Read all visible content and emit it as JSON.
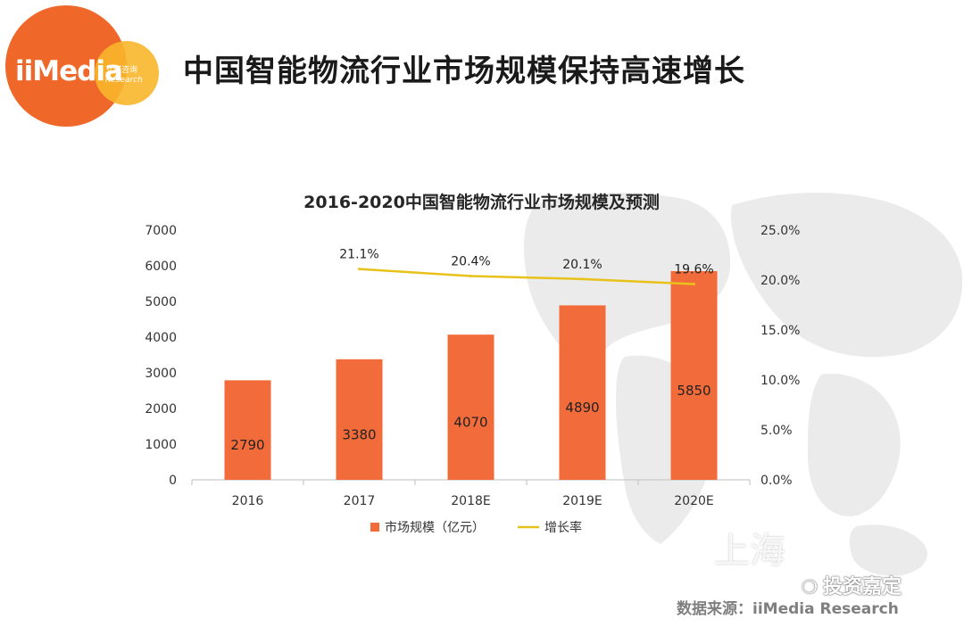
{
  "header": {
    "logo_text": "iiMedia",
    "logo_cn": "艾媒咨询",
    "logo_en": "Research",
    "title": "中国智能物流行业市场规模保持高速增长"
  },
  "chart_data": {
    "type": "bar",
    "title": "2016-2020中国智能物流行业市场规模及预测",
    "categories": [
      "2016",
      "2017",
      "2018E",
      "2019E",
      "2020E"
    ],
    "series": [
      {
        "name": "市场规模（亿元）",
        "type": "bar",
        "axis": "left",
        "values": [
          2790,
          3380,
          4070,
          4890,
          5850
        ],
        "labels": [
          "2790",
          "3380",
          "4070",
          "4890",
          "5850"
        ]
      },
      {
        "name": "增长率",
        "type": "line",
        "axis": "right",
        "values": [
          null,
          21.1,
          20.4,
          20.1,
          19.6
        ],
        "labels": [
          "",
          "21.1%",
          "20.4%",
          "20.1%",
          "19.6%"
        ]
      }
    ],
    "ylim": [
      0,
      7000
    ],
    "y_ticks": [
      "0",
      "1000",
      "2000",
      "3000",
      "4000",
      "5000",
      "6000",
      "7000"
    ],
    "y2lim": [
      0,
      25
    ],
    "y2_ticks": [
      "0.0%",
      "5.0%",
      "10.0%",
      "15.0%",
      "20.0%",
      "25.0%"
    ],
    "legend_position": "bottom",
    "grid": false,
    "colors": {
      "bar": "#f26b3a",
      "line": "#e8c21a"
    }
  },
  "watermark": {
    "shanghai": "上海",
    "wechat": "投资嘉定"
  },
  "footer": {
    "source": "数据来源：iiMedia Research"
  }
}
